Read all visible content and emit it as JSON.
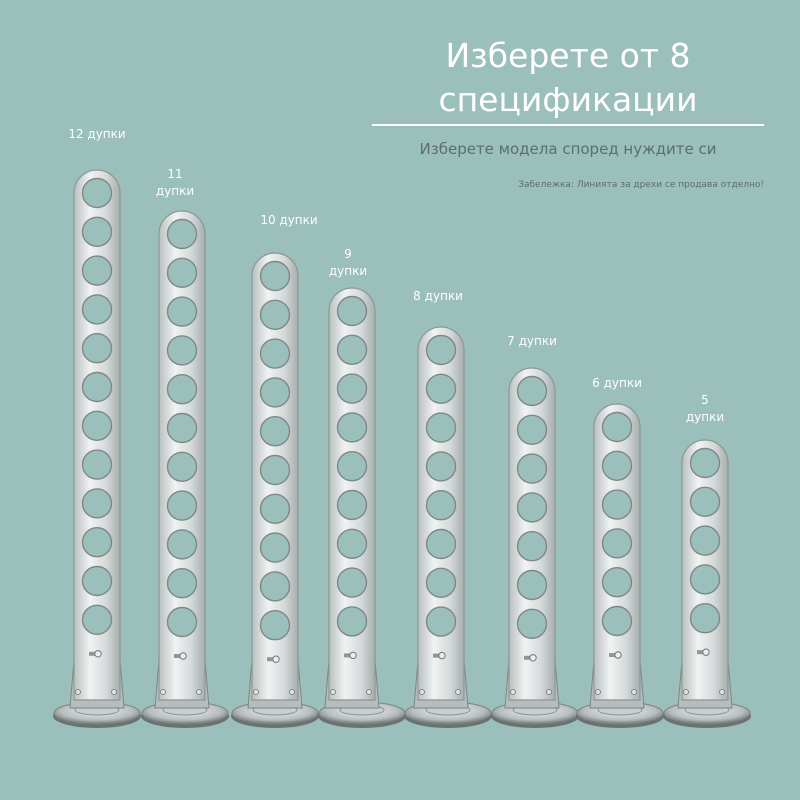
{
  "header": {
    "title_line1": "Изберете от 8",
    "title_line2": "спецификации",
    "subtitle": "Изберете модела според нуждите си",
    "note": "Забележка: Линията за дрехи се продава отделно!"
  },
  "models": [
    {
      "label_line1": "12 дупки",
      "label_line2": "",
      "holes": 12
    },
    {
      "label_line1": "11",
      "label_line2": "дупки",
      "holes": 11
    },
    {
      "label_line1": "10 дупки",
      "label_line2": "",
      "holes": 10
    },
    {
      "label_line1": "9",
      "label_line2": "дупки",
      "holes": 9
    },
    {
      "label_line1": "8 дупки",
      "label_line2": "",
      "holes": 8
    },
    {
      "label_line1": "7 дупки",
      "label_line2": "",
      "holes": 7
    },
    {
      "label_line1": "6 дупки",
      "label_line2": "",
      "holes": 6
    },
    {
      "label_line1": "5",
      "label_line2": "дупки",
      "holes": 5
    }
  ],
  "colors": {
    "background": "#9bbfba",
    "steel": "#d8dcdc",
    "steel_dark": "#8e9696"
  }
}
